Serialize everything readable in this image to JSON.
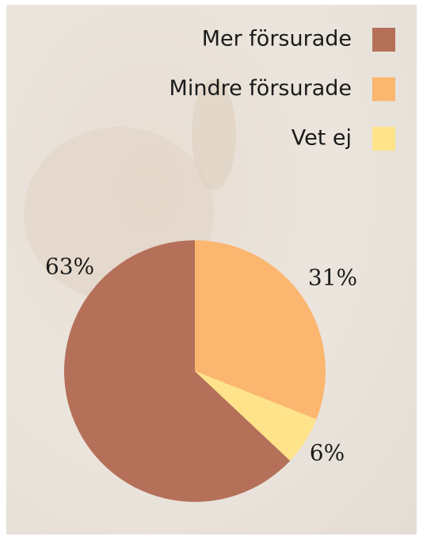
{
  "chart_data": {
    "type": "pie",
    "categories": [
      "Mer försurade",
      "Mindre försurade",
      "Vet ej"
    ],
    "values": [
      63,
      31,
      6
    ],
    "value_labels": [
      "63%",
      "31%",
      "6%"
    ],
    "colors": [
      "#b5705a",
      "#fbb670",
      "#ffe38a"
    ],
    "legend": "top-right"
  }
}
